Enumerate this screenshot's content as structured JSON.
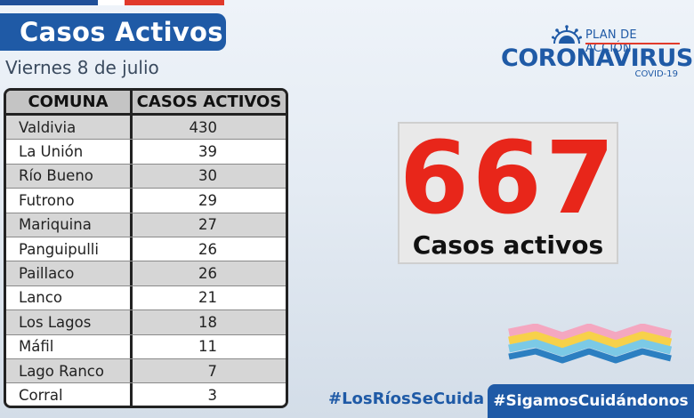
{
  "header": {
    "title": "Casos Activos",
    "date": "Viernes 8 de julio"
  },
  "table": {
    "headers": [
      "COMUNA",
      "CASOS ACTIVOS"
    ],
    "rows": [
      {
        "comuna": "Valdivia",
        "casos": "430"
      },
      {
        "comuna": "La Unión",
        "casos": "39"
      },
      {
        "comuna": "Río Bueno",
        "casos": "30"
      },
      {
        "comuna": "Futrono",
        "casos": "29"
      },
      {
        "comuna": "Mariquina",
        "casos": "27"
      },
      {
        "comuna": "Panguipulli",
        "casos": "26"
      },
      {
        "comuna": "Paillaco",
        "casos": "26"
      },
      {
        "comuna": "Lanco",
        "casos": "21"
      },
      {
        "comuna": "Los Lagos",
        "casos": "18"
      },
      {
        "comuna": "Máfil",
        "casos": "11"
      },
      {
        "comuna": "Lago Ranco",
        "casos": "7"
      },
      {
        "comuna": "Corral",
        "casos": "3"
      }
    ]
  },
  "logo": {
    "plan": "PLAN DE ACCIÓN",
    "name": "CORONAVIRUS",
    "sub": "COVID-19",
    "icon": "virus-icon"
  },
  "total": {
    "value": "667",
    "label": "Casos activos"
  },
  "hashtags": {
    "primary": "#LosRíosSeCuida",
    "secondary": "#SigamosCuidándonos"
  },
  "colors": {
    "brand_blue": "#1f5aa6",
    "accent_red": "#e8261a"
  }
}
